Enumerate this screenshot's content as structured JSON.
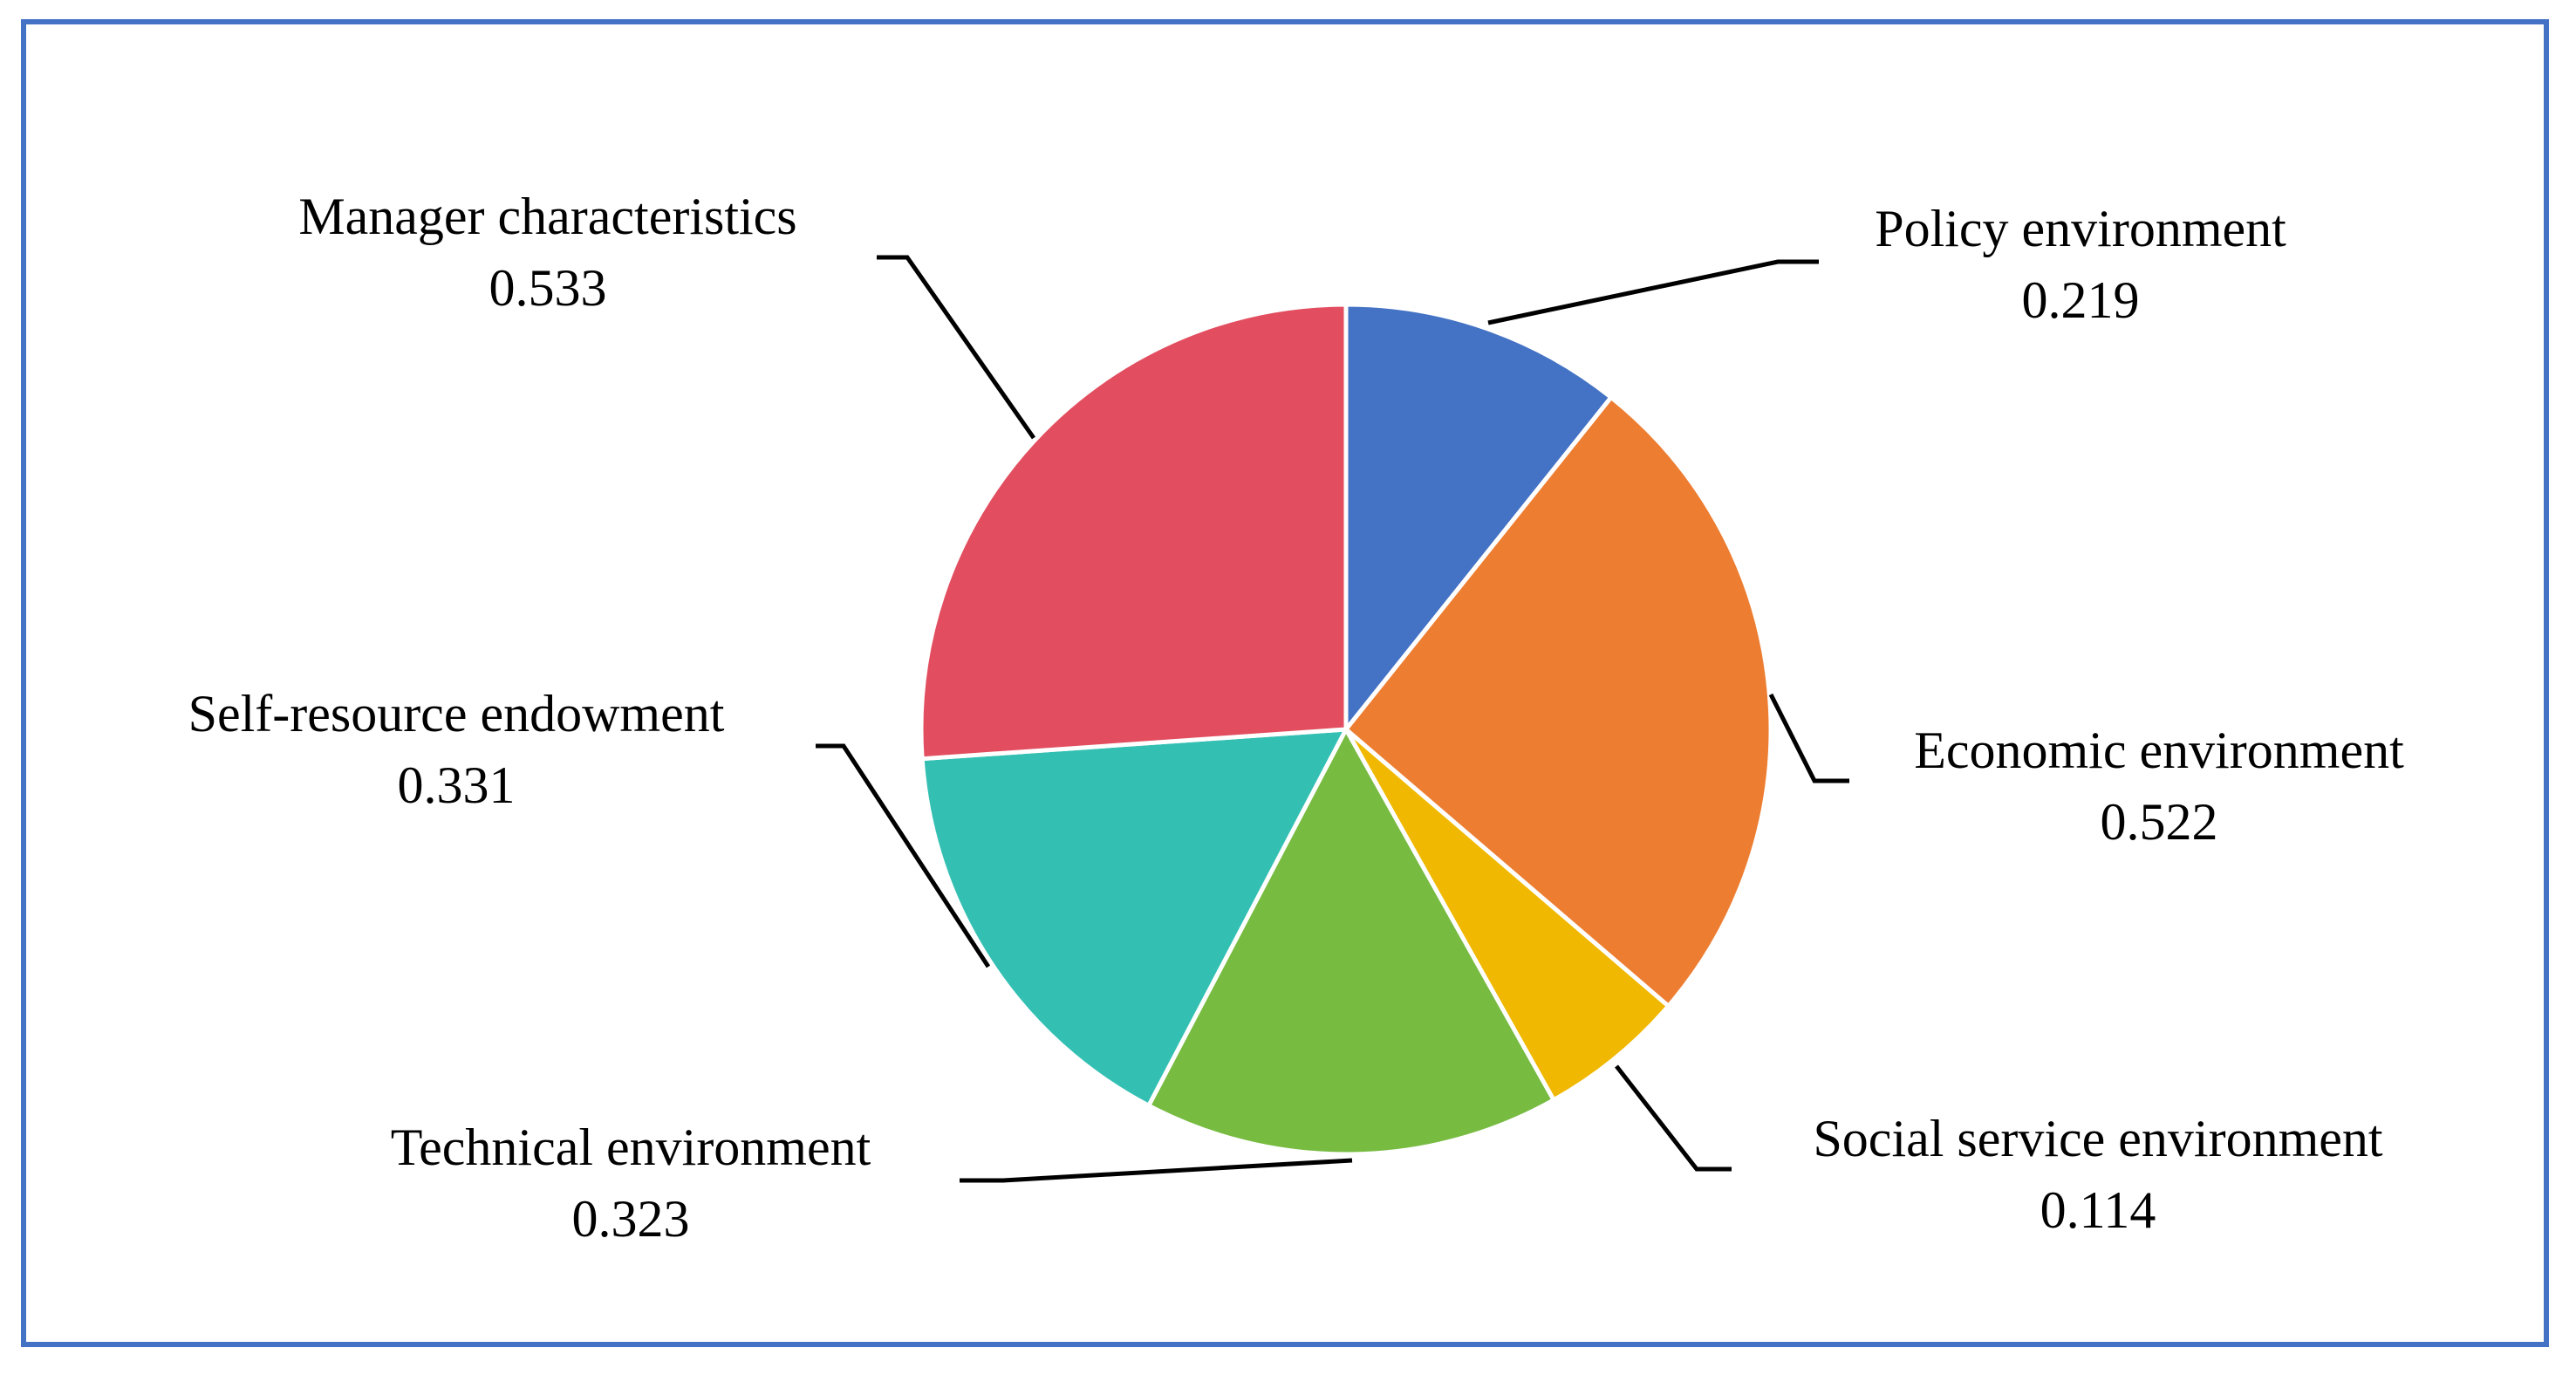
{
  "chart_data": {
    "type": "pie",
    "title": "",
    "start_angle_deg": 0,
    "direction": "clockwise",
    "slices": [
      {
        "label": "Policy environment",
        "value": 0.219,
        "display": "0.219",
        "color": "#4472c4"
      },
      {
        "label": "Economic environment",
        "value": 0.522,
        "display": "0.522",
        "color": "#ed7d31"
      },
      {
        "label": "Social service environment",
        "value": 0.114,
        "display": "0.114",
        "color": "#f0b800"
      },
      {
        "label": "Technical environment",
        "value": 0.323,
        "display": "0.323",
        "color": "#77bb41"
      },
      {
        "label": "Self-resource endowment",
        "value": 0.331,
        "display": "0.331",
        "color": "#33c0b3"
      },
      {
        "label": "Manager characteristics",
        "value": 0.533,
        "display": "0.533",
        "color": "#e24e5f"
      }
    ]
  }
}
